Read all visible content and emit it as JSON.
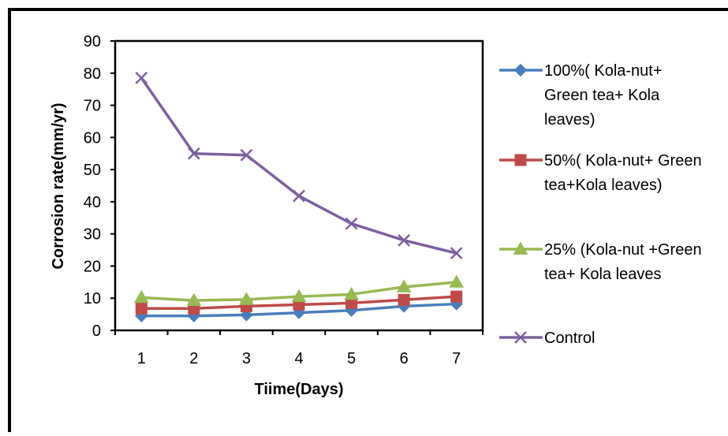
{
  "chart_data": {
    "type": "line",
    "title": "",
    "xlabel": "Tiime(Days)",
    "ylabel": "Corrosion rate(mm/yr)",
    "x": [
      1,
      2,
      3,
      4,
      5,
      6,
      7
    ],
    "ylim": [
      0,
      90
    ],
    "yticks": [
      0,
      10,
      20,
      30,
      40,
      50,
      60,
      70,
      80,
      90
    ],
    "grid": false,
    "legend_position": "right",
    "series": [
      {
        "name": "100%( Kola-nut+ Green tea+ Kola leaves)",
        "legend_lines": [
          "100%( Kola-nut+",
          "Green tea+ Kola",
          "leaves)"
        ],
        "color": "#4a7ebb",
        "marker": "diamond",
        "values": [
          4.5,
          4.5,
          4.8,
          5.5,
          6.2,
          7.5,
          8.2
        ]
      },
      {
        "name": "50%( Kola-nut+ Green tea+Kola leaves)",
        "legend_lines": [
          "50%( Kola-nut+ Green",
          "tea+Kola leaves)"
        ],
        "color": "#be4b48",
        "marker": "square",
        "values": [
          6.8,
          6.8,
          7.5,
          8.0,
          8.5,
          9.5,
          10.5
        ]
      },
      {
        "name": "25% (Kola-nut +Green tea+ Kola leaves",
        "legend_lines": [
          "25% (Kola-nut +Green",
          "tea+ Kola leaves"
        ],
        "color": "#98b954",
        "marker": "triangle",
        "values": [
          10.2,
          9.3,
          9.6,
          10.5,
          11.2,
          13.5,
          15.0
        ]
      },
      {
        "name": "Control",
        "legend_lines": [
          "Control"
        ],
        "color": "#7d5fa0",
        "marker": "x",
        "values": [
          78.5,
          55.0,
          54.5,
          41.8,
          33.2,
          28.0,
          24.0
        ]
      }
    ]
  }
}
